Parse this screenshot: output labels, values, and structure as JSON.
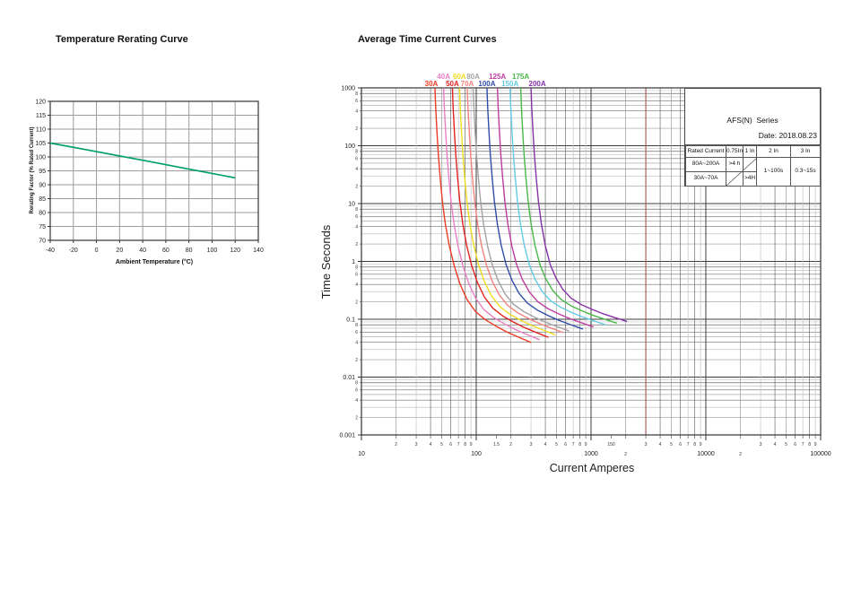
{
  "page": {
    "left_title": "Temperature Rerating Curve",
    "right_title": "Average Time Current Curves"
  },
  "chart_data": [
    {
      "type": "line",
      "title": "Temperature Rerating Curve",
      "xlabel": "Ambient Temperature (°C)",
      "ylabel": "Rerating Factor (% Rated Current)",
      "xlim": [
        -40,
        140
      ],
      "ylim": [
        70,
        120
      ],
      "xticks": [
        -40,
        -20,
        0,
        20,
        40,
        60,
        80,
        100,
        120,
        140
      ],
      "yticks": [
        70,
        75,
        80,
        85,
        90,
        95,
        100,
        105,
        110,
        115,
        120
      ],
      "grid": true,
      "line_color": "#00a06a",
      "series": [
        {
          "name": "rerating-factor",
          "color": "#00a06a",
          "points": [
            [
              -40,
              105
            ],
            [
              0,
              101.9
            ],
            [
              40,
              98.8
            ],
            [
              80,
              95.6
            ],
            [
              120,
              92.5
            ]
          ]
        }
      ]
    },
    {
      "type": "line",
      "scale": "log-log",
      "title": "Average Time Current Curves",
      "xlabel": "Current Amperes",
      "ylabel": "Time Seconds",
      "xlim": [
        10,
        100000
      ],
      "ylim": [
        0.001,
        1000
      ],
      "grid": true,
      "x_major_ticks": [
        [
          10,
          "10"
        ],
        [
          100,
          "100"
        ],
        [
          1000,
          "1000"
        ],
        [
          10000,
          "10000"
        ],
        [
          100000,
          "100000"
        ]
      ],
      "x_minor_ticks": [
        [
          20,
          "2"
        ],
        [
          30,
          "3"
        ],
        [
          40,
          "4"
        ],
        [
          50,
          "5"
        ],
        [
          60,
          "6"
        ],
        [
          70,
          "7"
        ],
        [
          80,
          "8"
        ],
        [
          90,
          "9"
        ],
        [
          150,
          "1.5"
        ],
        [
          200,
          "2"
        ],
        [
          300,
          "3"
        ],
        [
          400,
          "4"
        ],
        [
          500,
          "5"
        ],
        [
          600,
          "6"
        ],
        [
          700,
          "7"
        ],
        [
          800,
          "8"
        ],
        [
          900,
          "9"
        ],
        [
          1500,
          "150"
        ],
        [
          2000,
          "2",
          1
        ],
        [
          3000,
          "3"
        ],
        [
          4000,
          "4"
        ],
        [
          5000,
          "5"
        ],
        [
          6000,
          "6"
        ],
        [
          7000,
          "7"
        ],
        [
          8000,
          "8"
        ],
        [
          9000,
          "9"
        ],
        [
          20000,
          "2",
          1
        ],
        [
          30000,
          "3"
        ],
        [
          40000,
          "4"
        ],
        [
          50000,
          "5"
        ],
        [
          60000,
          "6"
        ],
        [
          70000,
          "7"
        ],
        [
          80000,
          "8"
        ],
        [
          90000,
          "9"
        ]
      ],
      "y_major_ticks": [
        [
          1000,
          "1000"
        ],
        [
          100,
          "100"
        ],
        [
          10,
          "10"
        ],
        [
          1,
          "1"
        ],
        [
          0.1,
          "0.1"
        ],
        [
          0.01,
          "0.01"
        ],
        [
          0.001,
          "0.001"
        ]
      ],
      "y_minor_label_digits": [
        "8",
        "6",
        "4",
        "2"
      ],
      "special_vline": {
        "x": 3000,
        "color": "#a2564e"
      },
      "curve_shape": {
        "factors": [
          1.0,
          1.015,
          1.04,
          1.07,
          1.11,
          1.16,
          1.23,
          1.33,
          1.47,
          1.65,
          1.9,
          2.25,
          2.75,
          3.4,
          4.2,
          5.3,
          6.8
        ],
        "times": [
          1000,
          450,
          180,
          70,
          28,
          11,
          4.5,
          1.9,
          0.85,
          0.42,
          0.23,
          0.145,
          0.105,
          0.082,
          0.066,
          0.054,
          0.044
        ]
      },
      "curves": [
        {
          "label": "30A",
          "color": "#ee3b23",
          "start_amps": 43.7,
          "t_end": 0.04,
          "label_row": "lower"
        },
        {
          "label": "40A",
          "color": "#ea7fc4",
          "start_amps": 52,
          "t_end": 0.0445,
          "label_row": "upper"
        },
        {
          "label": "50A",
          "color": "#e4231f",
          "start_amps": 62,
          "t_end": 0.049,
          "label_row": "lower"
        },
        {
          "label": "60A",
          "color": "#f0dd22",
          "start_amps": 71.5,
          "t_end": 0.054,
          "label_row": "upper"
        },
        {
          "label": "70A",
          "color": "#f4837d",
          "start_amps": 83.5,
          "t_end": 0.059,
          "label_row": "lower"
        },
        {
          "label": "80A",
          "color": "#a3a3a3",
          "start_amps": 94,
          "t_end": 0.063,
          "label_row": "upper"
        },
        {
          "label": "100A",
          "color": "#2f4da8",
          "start_amps": 124,
          "t_end": 0.068,
          "label_row": "lower"
        },
        {
          "label": "125A",
          "color": "#bc3c9e",
          "start_amps": 153,
          "t_end": 0.074,
          "label_row": "upper"
        },
        {
          "label": "150A",
          "color": "#62cbe4",
          "start_amps": 197,
          "t_end": 0.08,
          "label_row": "lower"
        },
        {
          "label": "175A",
          "color": "#4ab749",
          "start_amps": 244,
          "t_end": 0.086,
          "label_row": "upper"
        },
        {
          "label": "200A",
          "color": "#8631a7",
          "start_amps": 300,
          "t_end": 0.092,
          "label_row": "lower"
        }
      ],
      "table": {
        "series_title": "AFS(N)  Series",
        "date": "Date: 2018.08.23",
        "headers": [
          "Rated Current",
          "0.75In",
          "1 In",
          "2 In",
          "3 In"
        ],
        "cells": {
          "r1c0": "80A~200A",
          "r1c1": ">4 h",
          "r2c0": "30A~70A",
          "r2c2": ">4H",
          "merged_2in": "1~100s",
          "merged_3in": "0.3~15s"
        }
      }
    }
  ]
}
